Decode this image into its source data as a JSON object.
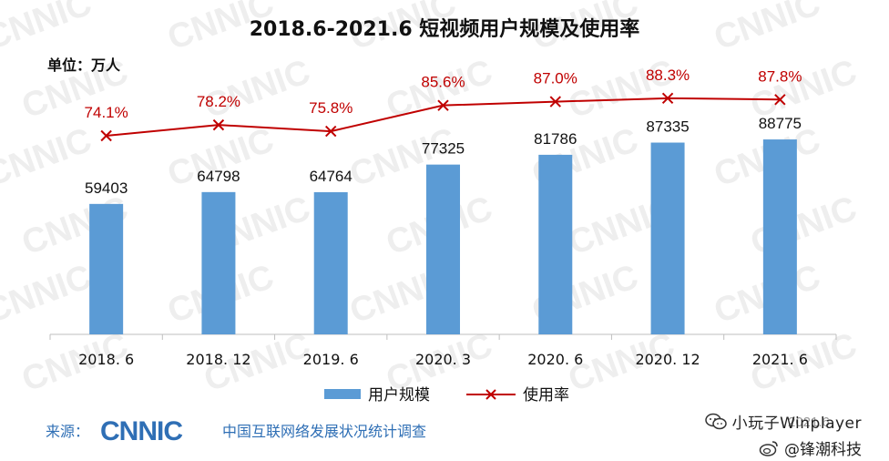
{
  "header": {
    "title": "2018.6-2021.6 短视频用户规模及使用率",
    "unit_label": "单位：万人"
  },
  "chart_data": {
    "type": "bar",
    "categories": [
      "2018. 6",
      "2018. 12",
      "2019. 6",
      "2020. 3",
      "2020. 6",
      "2020. 12",
      "2021. 6"
    ],
    "series": [
      {
        "name": "用户规模",
        "type": "bar",
        "values": [
          59403,
          64798,
          64764,
          77325,
          81786,
          87335,
          88775
        ],
        "color": "#5b9bd5"
      },
      {
        "name": "使用率",
        "type": "line",
        "values": [
          74.1,
          78.2,
          75.8,
          85.6,
          87.0,
          88.3,
          87.8
        ],
        "labels": [
          "74.1%",
          "78.2%",
          "75.8%",
          "85.6%",
          "87.0%",
          "88.3%",
          "87.8%"
        ],
        "color": "#c00000",
        "marker": "x"
      }
    ],
    "legend_position": "bottom",
    "grid": false
  },
  "footer": {
    "source_label": "来源：",
    "logo_text": "CNNIC",
    "org_name": "中国互联网络发展状况统计调查"
  },
  "watermark": {
    "line1": "小玩子Winplayer",
    "line2": "@锋潮科技",
    "overlay": "2021.6"
  },
  "colors": {
    "bar": "#5b9bd5",
    "line": "#c00000",
    "brand": "#2f6fb5"
  },
  "icons": {
    "wechat": "wechat-icon",
    "weibo": "weibo-icon"
  }
}
